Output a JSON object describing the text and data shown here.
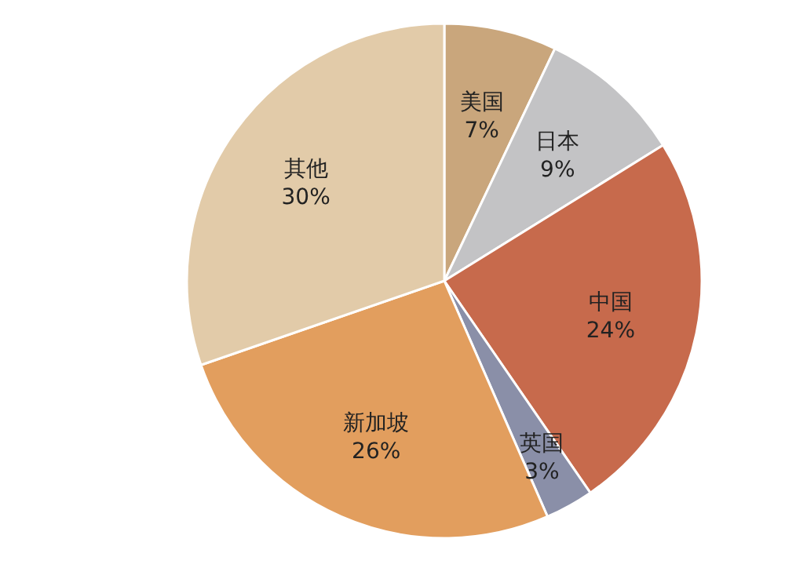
{
  "chart_data": {
    "type": "pie",
    "categories": [
      "美国",
      "日本",
      "中国",
      "英国",
      "新加坡",
      "其他"
    ],
    "values": [
      7,
      9,
      24,
      3,
      26,
      30
    ],
    "value_labels": [
      "7%",
      "9%",
      "24%",
      "3%",
      "26%",
      "30%"
    ],
    "colors": [
      "#c9a67c",
      "#c3c3c5",
      "#c76a4c",
      "#8a8fa8",
      "#e29e5e",
      "#e2cba9"
    ],
    "legend": false
  }
}
